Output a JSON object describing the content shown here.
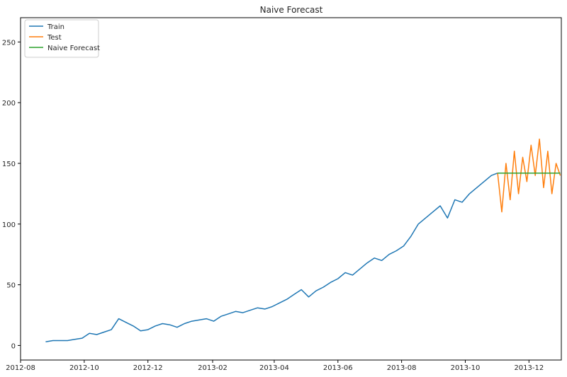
{
  "chart_data": {
    "type": "line",
    "title": "Naive Forecast",
    "xlabel": "",
    "ylabel": "",
    "x_range": [
      "2012-08-01",
      "2014-01-01"
    ],
    "ylim": [
      -12,
      270
    ],
    "y_ticks": [
      0,
      50,
      100,
      150,
      200,
      250
    ],
    "x_ticks": [
      {
        "date": "2012-08-01",
        "label": "2012-08"
      },
      {
        "date": "2012-10-01",
        "label": "2012-10"
      },
      {
        "date": "2012-12-01",
        "label": "2012-12"
      },
      {
        "date": "2013-02-01",
        "label": "2013-02"
      },
      {
        "date": "2013-04-01",
        "label": "2013-04"
      },
      {
        "date": "2013-06-01",
        "label": "2013-06"
      },
      {
        "date": "2013-08-01",
        "label": "2013-08"
      },
      {
        "date": "2013-10-01",
        "label": "2013-10"
      },
      {
        "date": "2013-12-01",
        "label": "2013-12"
      }
    ],
    "grid": false,
    "legend": "top-left",
    "series": [
      {
        "name": "Train",
        "color": "#1f77b4",
        "points": [
          [
            "2012-08-25",
            3
          ],
          [
            "2012-09-01",
            4
          ],
          [
            "2012-09-08",
            4
          ],
          [
            "2012-09-15",
            4
          ],
          [
            "2012-09-22",
            5
          ],
          [
            "2012-09-29",
            6
          ],
          [
            "2012-10-06",
            10
          ],
          [
            "2012-10-13",
            9
          ],
          [
            "2012-10-20",
            11
          ],
          [
            "2012-10-27",
            13
          ],
          [
            "2012-11-03",
            22
          ],
          [
            "2012-11-10",
            19
          ],
          [
            "2012-11-17",
            16
          ],
          [
            "2012-11-24",
            12
          ],
          [
            "2012-12-01",
            13
          ],
          [
            "2012-12-08",
            16
          ],
          [
            "2012-12-15",
            18
          ],
          [
            "2012-12-22",
            17
          ],
          [
            "2012-12-29",
            15
          ],
          [
            "2013-01-05",
            18
          ],
          [
            "2013-01-12",
            20
          ],
          [
            "2013-01-19",
            21
          ],
          [
            "2013-01-26",
            22
          ],
          [
            "2013-02-02",
            20
          ],
          [
            "2013-02-09",
            24
          ],
          [
            "2013-02-16",
            26
          ],
          [
            "2013-02-23",
            28
          ],
          [
            "2013-03-02",
            27
          ],
          [
            "2013-03-09",
            29
          ],
          [
            "2013-03-16",
            31
          ],
          [
            "2013-03-23",
            30
          ],
          [
            "2013-03-30",
            32
          ],
          [
            "2013-04-06",
            35
          ],
          [
            "2013-04-13",
            38
          ],
          [
            "2013-04-20",
            42
          ],
          [
            "2013-04-27",
            46
          ],
          [
            "2013-05-04",
            40
          ],
          [
            "2013-05-11",
            45
          ],
          [
            "2013-05-18",
            48
          ],
          [
            "2013-05-25",
            52
          ],
          [
            "2013-06-01",
            55
          ],
          [
            "2013-06-08",
            60
          ],
          [
            "2013-06-15",
            58
          ],
          [
            "2013-06-22",
            63
          ],
          [
            "2013-06-29",
            68
          ],
          [
            "2013-07-06",
            72
          ],
          [
            "2013-07-13",
            70
          ],
          [
            "2013-07-20",
            75
          ],
          [
            "2013-07-27",
            78
          ],
          [
            "2013-08-03",
            82
          ],
          [
            "2013-08-10",
            90
          ],
          [
            "2013-08-17",
            100
          ],
          [
            "2013-08-24",
            105
          ],
          [
            "2013-08-31",
            110
          ],
          [
            "2013-09-07",
            115
          ],
          [
            "2013-09-14",
            105
          ],
          [
            "2013-09-21",
            120
          ],
          [
            "2013-09-28",
            118
          ],
          [
            "2013-10-05",
            125
          ],
          [
            "2013-10-12",
            130
          ],
          [
            "2013-10-19",
            135
          ],
          [
            "2013-10-26",
            140
          ],
          [
            "2013-11-01",
            142
          ]
        ]
      },
      {
        "name": "Test",
        "color": "#ff7f0e",
        "points": [
          [
            "2013-11-01",
            142
          ],
          [
            "2013-11-05",
            110
          ],
          [
            "2013-11-09",
            150
          ],
          [
            "2013-11-13",
            120
          ],
          [
            "2013-11-17",
            160
          ],
          [
            "2013-11-21",
            125
          ],
          [
            "2013-11-25",
            155
          ],
          [
            "2013-11-29",
            135
          ],
          [
            "2013-12-03",
            165
          ],
          [
            "2013-12-07",
            140
          ],
          [
            "2013-12-11",
            170
          ],
          [
            "2013-12-15",
            130
          ],
          [
            "2013-12-19",
            160
          ],
          [
            "2013-12-23",
            125
          ],
          [
            "2013-12-27",
            150
          ],
          [
            "2013-12-31",
            140
          ]
        ]
      },
      {
        "name": "Naive Forecast",
        "color": "#2ca02c",
        "points": [
          [
            "2013-11-01",
            142
          ],
          [
            "2013-12-31",
            142
          ]
        ]
      }
    ]
  }
}
